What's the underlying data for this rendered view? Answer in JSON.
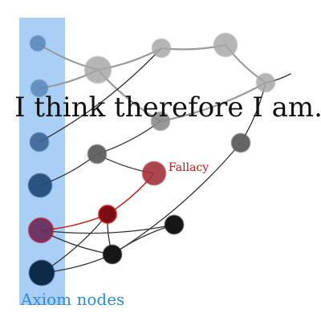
{
  "title": "I think therefore I am.",
  "axiom_label": "Axiom nodes",
  "fallacy_label": "Fallacy",
  "colors": {
    "background": "#ffffff",
    "axiom_band": "#a9cff7",
    "axiom_label": "#2f8bde",
    "fallacy": "#cc1111",
    "edge": "#333333",
    "title": "#111111"
  },
  "nodes": [
    {
      "id": "a1",
      "role": "axiom",
      "shade": "blue-light"
    },
    {
      "id": "a2",
      "role": "axiom",
      "shade": "blue-light"
    },
    {
      "id": "a3",
      "role": "axiom",
      "shade": "blue-mid"
    },
    {
      "id": "a4",
      "role": "axiom",
      "shade": "blue-dark"
    },
    {
      "id": "a5",
      "role": "axiom",
      "shade": "purple"
    },
    {
      "id": "a6",
      "role": "axiom",
      "shade": "blue-darkest"
    },
    {
      "id": "g1",
      "role": "inferred",
      "shade": "light-gray"
    },
    {
      "id": "g2",
      "role": "inferred",
      "shade": "light-gray"
    },
    {
      "id": "g3",
      "role": "inferred",
      "shade": "light-gray"
    },
    {
      "id": "g4",
      "role": "inferred",
      "shade": "light-gray"
    },
    {
      "id": "g5",
      "role": "inferred",
      "shade": "mid-gray"
    },
    {
      "id": "g6",
      "role": "inferred",
      "shade": "dark-gray"
    },
    {
      "id": "g7",
      "role": "inferred",
      "shade": "dark-gray"
    },
    {
      "id": "f1",
      "role": "fallacy",
      "shade": "red"
    },
    {
      "id": "r1",
      "role": "fallacy",
      "shade": "dark-red"
    },
    {
      "id": "b1",
      "role": "inferred",
      "shade": "black"
    },
    {
      "id": "b2",
      "role": "inferred",
      "shade": "black"
    }
  ],
  "edges": [
    {
      "from": "a1",
      "to": "g1",
      "kind": "normal"
    },
    {
      "from": "a2",
      "to": "g1",
      "kind": "normal"
    },
    {
      "from": "g1",
      "to": "g2",
      "kind": "normal"
    },
    {
      "from": "g2",
      "to": "g3",
      "kind": "normal"
    },
    {
      "from": "g3",
      "to": "g4",
      "kind": "normal"
    },
    {
      "from": "g1",
      "to": "g5",
      "kind": "normal"
    },
    {
      "from": "g5",
      "to": "g4",
      "kind": "normal"
    },
    {
      "from": "a3",
      "to": "g2",
      "kind": "normal"
    },
    {
      "from": "a4",
      "to": "g6",
      "kind": "normal"
    },
    {
      "from": "g6",
      "to": "g5",
      "kind": "normal"
    },
    {
      "from": "g6",
      "to": "f1",
      "kind": "normal"
    },
    {
      "from": "a5",
      "to": "r1",
      "kind": "fallacy"
    },
    {
      "from": "r1",
      "to": "f1",
      "kind": "fallacy"
    },
    {
      "from": "a5",
      "to": "b1",
      "kind": "normal"
    },
    {
      "from": "a5",
      "to": "b2",
      "kind": "normal"
    },
    {
      "from": "a6",
      "to": "r1",
      "kind": "normal"
    },
    {
      "from": "a6",
      "to": "b2",
      "kind": "normal"
    },
    {
      "from": "r1",
      "to": "b2",
      "kind": "normal"
    },
    {
      "from": "b1",
      "to": "b2",
      "kind": "normal"
    },
    {
      "from": "b2",
      "to": "g7",
      "kind": "normal"
    },
    {
      "from": "g7",
      "to": "g4",
      "kind": "normal"
    },
    {
      "from": "g4",
      "to": "tail",
      "kind": "normal"
    }
  ]
}
